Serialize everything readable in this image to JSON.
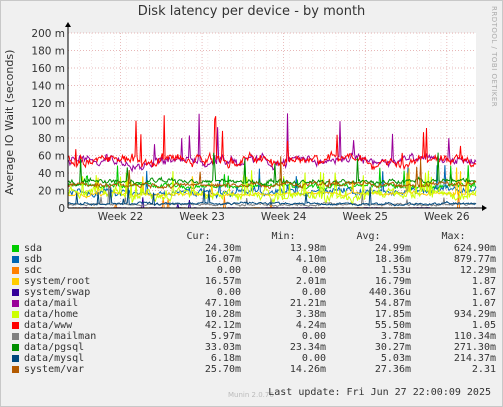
{
  "title": "Disk latency per device - by month",
  "watermark": "RRDTOOL / TOBI OETIKER",
  "footer": {
    "munin": "Munin 2.0.76",
    "last_update": "Last update: Fri Jun 27 22:00:09 2025"
  },
  "legend_headers": {
    "cur": "Cur:",
    "min": "Min:",
    "avg": "Avg:",
    "max": "Max:"
  },
  "chart_data": {
    "type": "line",
    "ylabel": "Average IO Wait (seconds)",
    "y_ticks": [
      "0",
      "20 m",
      "40 m",
      "60 m",
      "80 m",
      "100 m",
      "120 m",
      "140 m",
      "160 m",
      "180 m",
      "200 m"
    ],
    "y_range_ms": [
      0,
      200
    ],
    "x_range_days": [
      0,
      35
    ],
    "x_ticks": [
      {
        "label": "Week 22",
        "day": 4.5
      },
      {
        "label": "Week 23",
        "day": 11.5
      },
      {
        "label": "Week 24",
        "day": 18.5
      },
      {
        "label": "Week 25",
        "day": 25.5
      },
      {
        "label": "Week 26",
        "day": 32.5
      }
    ],
    "grid": true,
    "series": [
      {
        "name": "sda",
        "color": "#00cc00",
        "cur": "24.30m",
        "min": "13.98m",
        "avg": "24.99m",
        "max": "624.90m",
        "base": 25,
        "noise": 3,
        "spikes": 0.03
      },
      {
        "name": "sdb",
        "color": "#0066b3",
        "cur": "16.07m",
        "min": "4.10m",
        "avg": "18.36m",
        "max": "879.77m",
        "base": 18,
        "noise": 4,
        "spikes": 0.03
      },
      {
        "name": "sdc",
        "color": "#ff8000",
        "cur": "0.00",
        "min": "0.00",
        "avg": "1.53u",
        "max": "12.29m",
        "base": 0,
        "noise": 0.2,
        "spikes": 0.005
      },
      {
        "name": "system/root",
        "color": "#ffcc00",
        "cur": "16.57m",
        "min": "2.01m",
        "avg": "16.79m",
        "max": "1.87",
        "base": 16,
        "noise": 2,
        "spikes": 0.03
      },
      {
        "name": "system/swap",
        "color": "#330099",
        "cur": "0.00",
        "min": "0.00",
        "avg": "440.36u",
        "max": "1.67",
        "base": 0,
        "noise": 0.3,
        "spikes": 0.005
      },
      {
        "name": "data/mail",
        "color": "#990099",
        "cur": "47.10m",
        "min": "21.21m",
        "avg": "54.87m",
        "max": "1.07",
        "base": 54,
        "noise": 6,
        "spikes": 0.04
      },
      {
        "name": "data/home",
        "color": "#ccff00",
        "cur": "10.28m",
        "min": "3.38m",
        "avg": "17.85m",
        "max": "934.29m",
        "base": 15,
        "noise": 6,
        "spikes": 0.08
      },
      {
        "name": "data/www",
        "color": "#ff0000",
        "cur": "42.12m",
        "min": "4.24m",
        "avg": "55.50m",
        "max": "1.05",
        "base": 55,
        "noise": 6,
        "spikes": 0.04
      },
      {
        "name": "data/mailman",
        "color": "#808080",
        "cur": "5.97m",
        "min": "0.00",
        "avg": "3.78m",
        "max": "110.34m",
        "base": 4,
        "noise": 1.5,
        "spikes": 0.02
      },
      {
        "name": "data/pgsql",
        "color": "#008f00",
        "cur": "33.03m",
        "min": "23.34m",
        "avg": "30.27m",
        "max": "271.30m",
        "base": 30,
        "noise": 3,
        "spikes": 0.03
      },
      {
        "name": "data/mysql",
        "color": "#00487d",
        "cur": "6.18m",
        "min": "0.00",
        "avg": "5.03m",
        "max": "214.37m",
        "base": 5,
        "noise": 1.5,
        "spikes": 0.02
      },
      {
        "name": "system/var",
        "color": "#b35a00",
        "cur": "25.70m",
        "min": "14.26m",
        "avg": "27.36m",
        "max": "2.31",
        "base": 27,
        "noise": 3,
        "spikes": 0.03
      }
    ]
  }
}
